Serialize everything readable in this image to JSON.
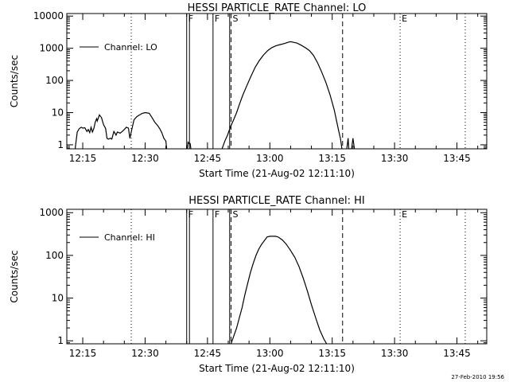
{
  "chart_data": [
    {
      "type": "line",
      "title": "HESSI PARTICLE_RATE Channel: LO",
      "xlabel": "Start Time (21-Aug-02 12:11:10)",
      "ylabel": "Counts/sec",
      "yscale": "log",
      "xlim": [
        "12:11:10",
        "13:52:10"
      ],
      "ylim": [
        0.75,
        12000
      ],
      "x_ticks": [
        "12:15",
        "12:30",
        "12:45",
        "13:00",
        "13:15",
        "13:30",
        "13:45"
      ],
      "y_ticks": [
        "1",
        "10",
        "100",
        "1000",
        "10000"
      ],
      "legend": {
        "placement": "top-left",
        "entries": [
          "Channel: LO"
        ]
      },
      "grid": false,
      "series": [
        {
          "name": "Channel: LO",
          "points": [
            [
              "12:13:10",
              0.75
            ],
            [
              "12:13:40",
              2.5
            ],
            [
              "12:14:10",
              3.2
            ],
            [
              "12:14:40",
              3.5
            ],
            [
              "12:15:00",
              3.3
            ],
            [
              "12:15:30",
              3.4
            ],
            [
              "12:16:00",
              2.6
            ],
            [
              "12:16:20",
              3.0
            ],
            [
              "12:16:40",
              2.4
            ],
            [
              "12:17:00",
              3.5
            ],
            [
              "12:17:20",
              2.5
            ],
            [
              "12:17:40",
              3.2
            ],
            [
              "12:18:00",
              5.0
            ],
            [
              "12:18:20",
              6.5
            ],
            [
              "12:18:30",
              5.5
            ],
            [
              "12:19:00",
              8.5
            ],
            [
              "12:19:30",
              7.0
            ],
            [
              "12:20:00",
              4.2
            ],
            [
              "12:20:30",
              3.2
            ],
            [
              "12:20:50",
              1.6
            ],
            [
              "12:21:10",
              1.5
            ],
            [
              "12:21:40",
              1.6
            ],
            [
              "12:22:00",
              1.5
            ],
            [
              "12:22:30",
              2.6
            ],
            [
              "12:23:00",
              2.0
            ],
            [
              "12:23:20",
              2.5
            ],
            [
              "12:24:00",
              2.3
            ],
            [
              "12:24:30",
              2.6
            ],
            [
              "12:25:00",
              3.0
            ],
            [
              "12:25:30",
              3.5
            ],
            [
              "12:26:00",
              3.3
            ],
            [
              "12:26:20",
              1.6
            ],
            [
              "12:26:40",
              2.5
            ],
            [
              "12:27:20",
              6.0
            ],
            [
              "12:28:00",
              7.5
            ],
            [
              "12:28:40",
              8.5
            ],
            [
              "12:29:20",
              9.5
            ],
            [
              "12:30:00",
              10.0
            ],
            [
              "12:30:30",
              9.8
            ],
            [
              "12:31:00",
              9.5
            ],
            [
              "12:31:40",
              7.0
            ],
            [
              "12:32:20",
              5.0
            ],
            [
              "12:33:00",
              4.0
            ],
            [
              "12:33:30",
              3.2
            ],
            [
              "12:34:00",
              2.4
            ],
            [
              "12:34:30",
              1.6
            ],
            [
              "12:35:00",
              1.3
            ],
            [
              "12:35:10",
              0.75
            ]
          ]
        },
        {
          "name": "Channel: LO",
          "points": [
            [
              "12:40:10",
              0.75
            ],
            [
              "12:40:20",
              1.2
            ],
            [
              "12:40:35",
              1.1
            ],
            [
              "12:40:50",
              1.1
            ],
            [
              "12:41:00",
              0.75
            ]
          ]
        },
        {
          "name": "Channel: LO",
          "points": [
            [
              "12:48:30",
              0.75
            ],
            [
              "12:49:10",
              1.3
            ],
            [
              "12:49:50",
              2.0
            ],
            [
              "12:50:30",
              3.5
            ],
            [
              "12:51:10",
              5.5
            ],
            [
              "12:52:00",
              10
            ],
            [
              "12:52:40",
              18
            ],
            [
              "12:53:30",
              35
            ],
            [
              "12:54:30",
              70
            ],
            [
              "12:55:30",
              140
            ],
            [
              "12:56:30",
              260
            ],
            [
              "12:57:30",
              420
            ],
            [
              "12:58:30",
              620
            ],
            [
              "12:59:30",
              850
            ],
            [
              "13:00:30",
              1050
            ],
            [
              "13:01:30",
              1200
            ],
            [
              "13:02:30",
              1300
            ],
            [
              "13:03:30",
              1400
            ],
            [
              "13:04:30",
              1550
            ],
            [
              "13:05:00",
              1600
            ],
            [
              "13:05:30",
              1550
            ],
            [
              "13:06:30",
              1450
            ],
            [
              "13:07:30",
              1250
            ],
            [
              "13:08:30",
              1050
            ],
            [
              "13:09:30",
              850
            ],
            [
              "13:10:30",
              600
            ],
            [
              "13:11:30",
              350
            ],
            [
              "13:12:30",
              180
            ],
            [
              "13:13:30",
              85
            ],
            [
              "13:14:30",
              35
            ],
            [
              "13:15:30",
              12
            ],
            [
              "13:16:00",
              6
            ],
            [
              "13:16:30",
              3
            ],
            [
              "13:17:00",
              1.5
            ],
            [
              "13:17:20",
              0.75
            ]
          ]
        },
        {
          "name": "Channel: LO",
          "points": [
            [
              "13:18:30",
              0.75
            ],
            [
              "13:18:50",
              1.6
            ],
            [
              "13:19:00",
              0.75
            ],
            [
              "13:19:40",
              0.75
            ],
            [
              "13:20:00",
              1.6
            ],
            [
              "13:20:20",
              0.75
            ]
          ]
        }
      ],
      "markers": [
        {
          "time": "12:40:00",
          "style": "solid",
          "label": "F"
        },
        {
          "time": "12:40:40",
          "style": "solid",
          "label": ""
        },
        {
          "time": "12:46:20",
          "style": "solid",
          "label": "F"
        },
        {
          "time": "12:50:20",
          "style": "solid",
          "label": ""
        },
        {
          "time": "12:50:40",
          "style": "dashed",
          "label": "S"
        },
        {
          "time": "13:17:30",
          "style": "dashed",
          "label": ""
        },
        {
          "time": "12:26:40",
          "style": "dotted",
          "label": ""
        },
        {
          "time": "13:31:20",
          "style": "dotted",
          "label": "E"
        },
        {
          "time": "13:47:00",
          "style": "dotted",
          "label": ""
        }
      ]
    },
    {
      "type": "line",
      "title": "HESSI PARTICLE_RATE Channel: HI",
      "xlabel": "Start Time (21-Aug-02 12:11:10)",
      "ylabel": "Counts/sec",
      "yscale": "log",
      "xlim": [
        "12:11:10",
        "13:52:10"
      ],
      "ylim": [
        0.85,
        1200
      ],
      "x_ticks": [
        "12:15",
        "12:30",
        "12:45",
        "13:00",
        "13:15",
        "13:30",
        "13:45"
      ],
      "y_ticks": [
        "1",
        "10",
        "100",
        "1000"
      ],
      "legend": {
        "placement": "top-left",
        "entries": [
          "Channel: HI"
        ]
      },
      "grid": false,
      "series": [
        {
          "name": "Channel: HI",
          "points": [
            [
              "12:50:40",
              0.85
            ],
            [
              "12:51:20",
              1.3
            ],
            [
              "12:52:00",
              2.0
            ],
            [
              "12:52:40",
              3.5
            ],
            [
              "12:53:20",
              6
            ],
            [
              "12:54:00",
              12
            ],
            [
              "12:54:40",
              22
            ],
            [
              "12:55:20",
              40
            ],
            [
              "12:56:00",
              65
            ],
            [
              "12:56:40",
              100
            ],
            [
              "12:57:20",
              140
            ],
            [
              "12:58:00",
              180
            ],
            [
              "12:58:40",
              220
            ],
            [
              "12:59:20",
              270
            ],
            [
              "13:00:00",
              280
            ],
            [
              "13:00:40",
              280
            ],
            [
              "13:01:20",
              280
            ],
            [
              "13:02:00",
              270
            ],
            [
              "13:03:00",
              230
            ],
            [
              "13:04:00",
              180
            ],
            [
              "13:05:00",
              130
            ],
            [
              "13:06:00",
              90
            ],
            [
              "13:07:00",
              55
            ],
            [
              "13:08:00",
              30
            ],
            [
              "13:09:00",
              15
            ],
            [
              "13:10:00",
              7
            ],
            [
              "13:11:00",
              3.5
            ],
            [
              "13:12:00",
              1.8
            ],
            [
              "13:13:00",
              1.1
            ],
            [
              "13:13:40",
              0.85
            ]
          ]
        }
      ],
      "markers": [
        {
          "time": "12:40:00",
          "style": "solid",
          "label": "F"
        },
        {
          "time": "12:40:40",
          "style": "solid",
          "label": ""
        },
        {
          "time": "12:46:20",
          "style": "solid",
          "label": "F"
        },
        {
          "time": "12:50:20",
          "style": "solid",
          "label": ""
        },
        {
          "time": "12:50:40",
          "style": "dashed",
          "label": "S"
        },
        {
          "time": "13:17:30",
          "style": "dashed",
          "label": ""
        },
        {
          "time": "12:26:40",
          "style": "dotted",
          "label": ""
        },
        {
          "time": "13:31:20",
          "style": "dotted",
          "label": "E"
        },
        {
          "time": "13:47:00",
          "style": "dotted",
          "label": ""
        }
      ]
    }
  ],
  "footer": {
    "timestamp": "27-Feb-2010 19:56"
  }
}
